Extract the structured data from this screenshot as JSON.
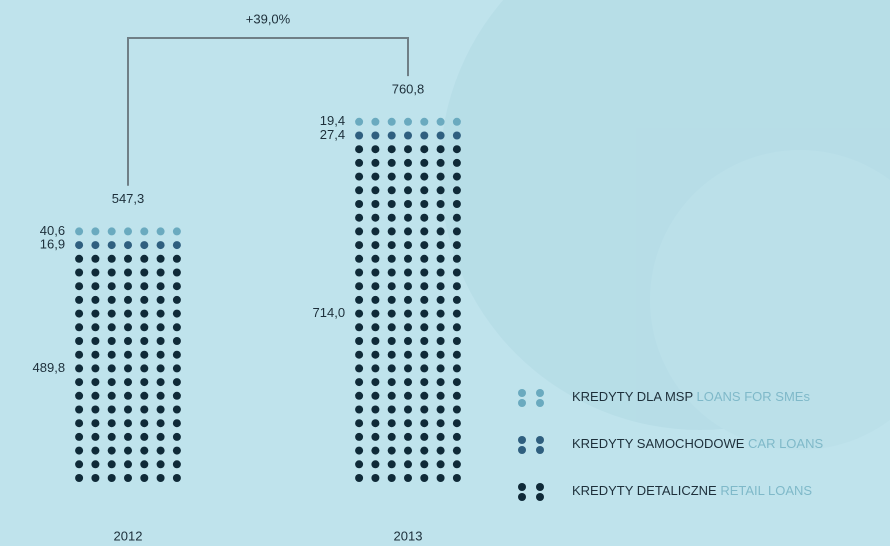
{
  "chart_data": {
    "type": "dot-stack",
    "change": "+39,0%",
    "categories": [
      "2012",
      "2013"
    ],
    "totals": {
      "values": [
        547.3,
        760.8
      ],
      "value_labels": [
        "547,3",
        "760,8"
      ]
    },
    "series": [
      {
        "name": "KREDYTY DLA MSP",
        "subname": "LOANS FOR SMEs",
        "color": "#6aaabf",
        "values": [
          40.6,
          19.4
        ],
        "value_labels": [
          "40,6",
          "19,4"
        ]
      },
      {
        "name": "KREDYTY SAMOCHODOWE",
        "subname": "CAR LOANS",
        "color": "#2f5f7f",
        "values": [
          16.9,
          27.4
        ],
        "value_labels": [
          "16,9",
          "27,4"
        ]
      },
      {
        "name": "KREDYTY DETALICZNE",
        "subname": "RETAIL LOANS",
        "color": "#0f2a38",
        "values": [
          489.8,
          714.0
        ],
        "value_labels": [
          "489,8",
          "714,0"
        ]
      }
    ]
  }
}
